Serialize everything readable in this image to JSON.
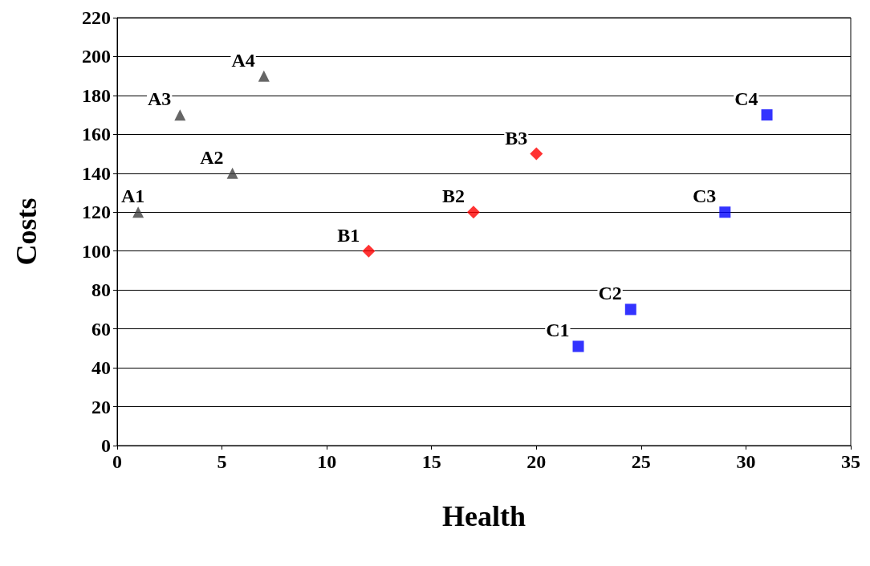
{
  "chart_data": {
    "type": "scatter",
    "xlabel": "Health",
    "ylabel": "Costs",
    "xlim": [
      0,
      35
    ],
    "xticks": [
      0,
      5,
      10,
      15,
      20,
      25,
      30,
      35
    ],
    "ylim": [
      0,
      220
    ],
    "yticks": [
      0,
      20,
      40,
      60,
      80,
      100,
      120,
      140,
      160,
      180,
      200,
      220
    ],
    "grid": "y",
    "series": [
      {
        "color": "#404040",
        "marker": "triangle",
        "x": [
          1,
          5.5,
          3,
          7
        ],
        "values": [
          120,
          140,
          170,
          190
        ]
      },
      {
        "color": "#ff0000",
        "marker": "diamond",
        "x": [
          12,
          17,
          20
        ],
        "values": [
          100,
          120,
          150
        ]
      },
      {
        "color": "#0000ff",
        "marker": "square",
        "x": [
          22,
          24.5,
          29,
          31
        ],
        "values": [
          51,
          70,
          120,
          170
        ]
      }
    ],
    "annotations": [
      {
        "text": "A1",
        "x": 1,
        "y": 120
      },
      {
        "text": "A2",
        "x": 5.5,
        "y": 140
      },
      {
        "text": "A3",
        "x": 3,
        "y": 170
      },
      {
        "text": "A4",
        "x": 7,
        "y": 190
      },
      {
        "text": "B1",
        "x": 12,
        "y": 100
      },
      {
        "text": "B2",
        "x": 17,
        "y": 120
      },
      {
        "text": "B3",
        "x": 20,
        "y": 150
      },
      {
        "text": "C1",
        "x": 22,
        "y": 51
      },
      {
        "text": "C2",
        "x": 24.5,
        "y": 70
      },
      {
        "text": "C3",
        "x": 29,
        "y": 120
      },
      {
        "text": "C4",
        "x": 31,
        "y": 170
      }
    ]
  }
}
